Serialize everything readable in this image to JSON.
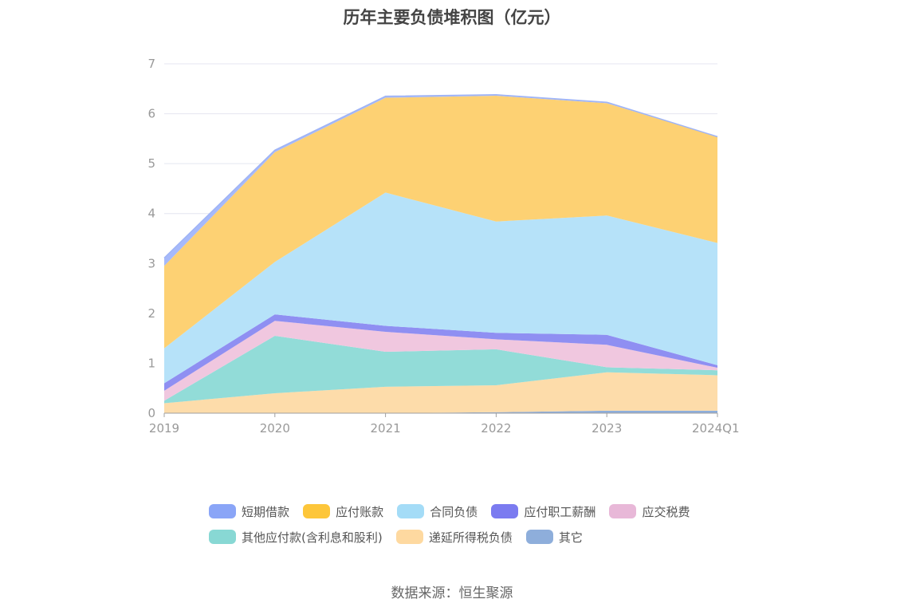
{
  "chart_data": {
    "type": "area",
    "stacked": true,
    "title": "历年主要负债堆积图（亿元）",
    "categories": [
      "2019",
      "2020",
      "2021",
      "2022",
      "2023",
      "2024Q1"
    ],
    "ylim": [
      0,
      7
    ],
    "yticks": [
      "0",
      "1",
      "2",
      "3",
      "4",
      "5",
      "6",
      "7"
    ],
    "grid": true,
    "legend_position": "bottom",
    "series": [
      {
        "name": "其它",
        "color": "#8eaedb",
        "values": [
          0.0,
          0.0,
          0.0,
          0.02,
          0.05,
          0.05
        ]
      },
      {
        "name": "递延所得税负债",
        "color": "#fddcaa",
        "values": [
          0.2,
          0.4,
          0.53,
          0.54,
          0.77,
          0.71
        ]
      },
      {
        "name": "其他应付款(含利息和股利)",
        "color": "#92dcd8",
        "values": [
          0.05,
          1.15,
          0.7,
          0.72,
          0.1,
          0.1
        ]
      },
      {
        "name": "应交税费",
        "color": "#f0c7df",
        "values": [
          0.2,
          0.3,
          0.4,
          0.2,
          0.45,
          0.05
        ]
      },
      {
        "name": "应付职工薪酬",
        "color": "#8f8ff2",
        "values": [
          0.15,
          0.13,
          0.12,
          0.13,
          0.2,
          0.05
        ]
      },
      {
        "name": "合同负债",
        "color": "#b6e2f9",
        "values": [
          0.7,
          1.05,
          2.67,
          2.23,
          2.39,
          2.45
        ]
      },
      {
        "name": "应付账款",
        "color": "#fdd173",
        "values": [
          1.65,
          2.2,
          1.9,
          2.52,
          2.25,
          2.13
        ]
      },
      {
        "name": "短期借款",
        "color": "#a6b9fa",
        "values": [
          0.16,
          0.04,
          0.03,
          0.02,
          0.02,
          0.0
        ]
      }
    ]
  },
  "legend": [
    {
      "label": "短期借款",
      "color": "#8aa5f7"
    },
    {
      "label": "应付账款",
      "color": "#fdc63a"
    },
    {
      "label": "合同负债",
      "color": "#a4dcf7"
    },
    {
      "label": "应付职工薪酬",
      "color": "#7b7bf0"
    },
    {
      "label": "应交税费",
      "color": "#e8b8d8"
    },
    {
      "label": "其他应付款(含利息和股利)",
      "color": "#88d8d4"
    },
    {
      "label": "递延所得税负债",
      "color": "#fed9a0"
    },
    {
      "label": "其它",
      "color": "#8eaedb"
    }
  ],
  "source": "数据来源：恒生聚源"
}
